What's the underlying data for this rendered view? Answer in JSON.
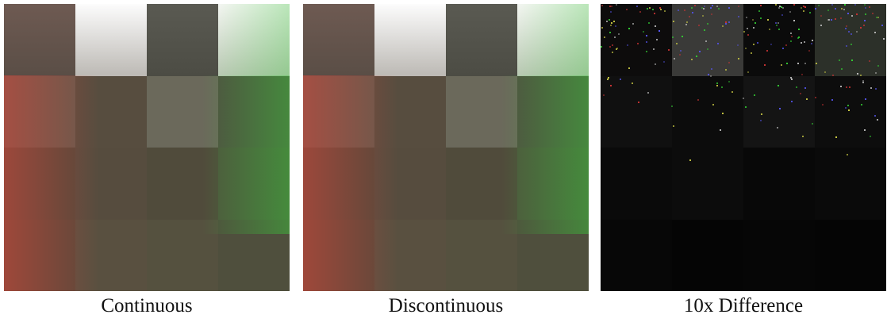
{
  "figure": {
    "panels": [
      {
        "caption": "Continuous"
      },
      {
        "caption": "Discontinuous"
      },
      {
        "caption": "10x Difference"
      }
    ]
  }
}
